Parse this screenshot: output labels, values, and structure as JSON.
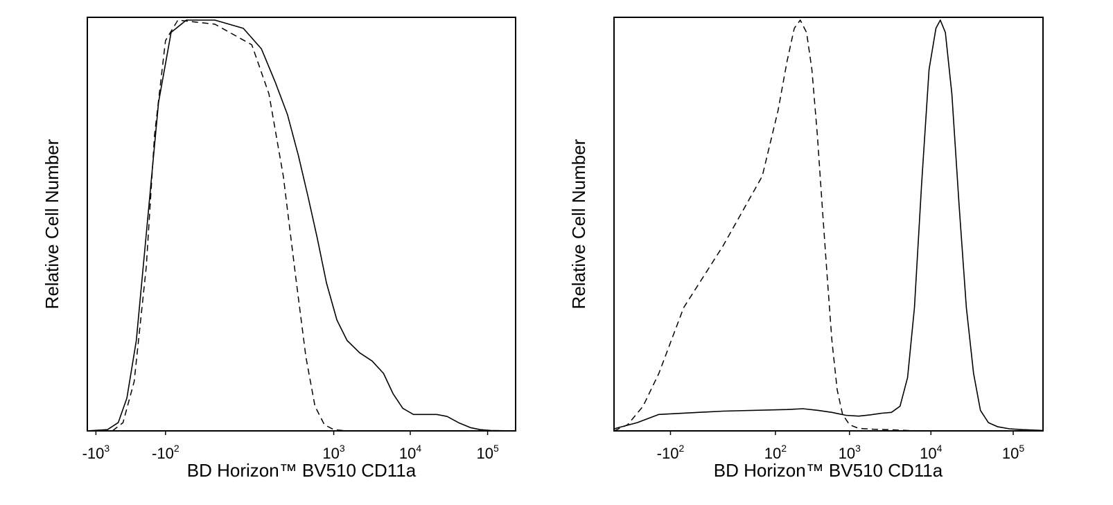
{
  "chart_data": [
    {
      "type": "line",
      "subtype": "flow-cytometry histogram",
      "xlabel": "BD Horizon™ BV510 CD11a",
      "ylabel": "Relative Cell Number",
      "xscale": "biexponential",
      "x_ticks": [
        {
          "base": "-10",
          "exp": "3",
          "value": -1000
        },
        {
          "base": "-10",
          "exp": "2",
          "value": -100
        },
        {
          "base": "10",
          "exp": "3",
          "value": 1000
        },
        {
          "base": "10",
          "exp": "4",
          "value": 10000
        },
        {
          "base": "10",
          "exp": "5",
          "value": 100000
        }
      ],
      "xlim": [
        -1300,
        230000
      ],
      "ylim": [
        0,
        100
      ],
      "series": [
        {
          "style": "dashed",
          "points": [
            [
              -600,
              0
            ],
            [
              -430,
              2
            ],
            [
              -300,
              12
            ],
            [
              -200,
              40
            ],
            [
              -150,
              72
            ],
            [
              -100,
              95
            ],
            [
              -60,
              100
            ],
            [
              0,
              99
            ],
            [
              60,
              94
            ],
            [
              120,
              82
            ],
            [
              200,
              62
            ],
            [
              300,
              38
            ],
            [
              420,
              18
            ],
            [
              560,
              6
            ],
            [
              750,
              1.5
            ],
            [
              1000,
              0.3
            ],
            [
              1500,
              0
            ],
            [
              10000,
              0
            ],
            [
              230000,
              0
            ]
          ]
        },
        {
          "style": "solid",
          "points": [
            [
              -1300,
              0
            ],
            [
              -700,
              0.3
            ],
            [
              -500,
              2
            ],
            [
              -380,
              8
            ],
            [
              -280,
              22
            ],
            [
              -200,
              48
            ],
            [
              -130,
              80
            ],
            [
              -80,
              97
            ],
            [
              -40,
              100
            ],
            [
              0,
              100
            ],
            [
              40,
              98
            ],
            [
              90,
              93
            ],
            [
              150,
              85
            ],
            [
              230,
              77
            ],
            [
              330,
              67
            ],
            [
              450,
              57
            ],
            [
              600,
              47
            ],
            [
              800,
              36
            ],
            [
              1100,
              27
            ],
            [
              1500,
              22
            ],
            [
              2200,
              19
            ],
            [
              3200,
              17
            ],
            [
              4500,
              14
            ],
            [
              6000,
              9
            ],
            [
              8000,
              5.5
            ],
            [
              11000,
              4
            ],
            [
              15000,
              4
            ],
            [
              22000,
              4
            ],
            [
              30000,
              3.5
            ],
            [
              42000,
              2
            ],
            [
              60000,
              0.8
            ],
            [
              80000,
              0.3
            ],
            [
              110000,
              0.1
            ],
            [
              230000,
              0
            ]
          ]
        }
      ]
    },
    {
      "type": "line",
      "subtype": "flow-cytometry histogram",
      "xlabel": "BD Horizon™ BV510 CD11a",
      "ylabel": "Relative Cell Number",
      "xscale": "biexponential",
      "x_ticks": [
        {
          "base": "-10",
          "exp": "2",
          "value": -100
        },
        {
          "base": "10",
          "exp": "2",
          "value": 100
        },
        {
          "base": "10",
          "exp": "3",
          "value": 1000
        },
        {
          "base": "10",
          "exp": "4",
          "value": 10000
        },
        {
          "base": "10",
          "exp": "5",
          "value": 100000
        }
      ],
      "xlim": [
        -600,
        230000
      ],
      "ylim": [
        0,
        100
      ],
      "series": [
        {
          "style": "dashed",
          "points": [
            [
              -600,
              0
            ],
            [
              -400,
              1.5
            ],
            [
              -250,
              6
            ],
            [
              -150,
              14
            ],
            [
              -60,
              30
            ],
            [
              0,
              45
            ],
            [
              60,
              62
            ],
            [
              110,
              78
            ],
            [
              150,
              90
            ],
            [
              190,
              98
            ],
            [
              230,
              100
            ],
            [
              280,
              97
            ],
            [
              330,
              88
            ],
            [
              390,
              72
            ],
            [
              450,
              55
            ],
            [
              520,
              38
            ],
            [
              600,
              22
            ],
            [
              700,
              10
            ],
            [
              820,
              4
            ],
            [
              1000,
              1.5
            ],
            [
              1300,
              0.6
            ],
            [
              2000,
              0.4
            ],
            [
              3000,
              0.3
            ],
            [
              5000,
              0.1
            ],
            [
              8000,
              0
            ],
            [
              230000,
              0
            ]
          ]
        },
        {
          "style": "solid",
          "points": [
            [
              -600,
              0.5
            ],
            [
              -300,
              2
            ],
            [
              -150,
              4
            ],
            [
              0,
              4.8
            ],
            [
              150,
              5.2
            ],
            [
              250,
              5.4
            ],
            [
              400,
              5
            ],
            [
              600,
              4.5
            ],
            [
              900,
              3.8
            ],
            [
              1300,
              3.6
            ],
            [
              1800,
              3.9
            ],
            [
              2500,
              4.3
            ],
            [
              3300,
              4.5
            ],
            [
              4200,
              6
            ],
            [
              5200,
              13
            ],
            [
              6300,
              30
            ],
            [
              7700,
              60
            ],
            [
              9500,
              88
            ],
            [
              11500,
              98
            ],
            [
              13000,
              100
            ],
            [
              15000,
              97
            ],
            [
              18000,
              82
            ],
            [
              22000,
              55
            ],
            [
              27000,
              30
            ],
            [
              33000,
              14
            ],
            [
              40000,
              5
            ],
            [
              50000,
              2
            ],
            [
              65000,
              1
            ],
            [
              90000,
              0.5
            ],
            [
              130000,
              0.3
            ],
            [
              230000,
              0.1
            ]
          ]
        }
      ]
    }
  ]
}
